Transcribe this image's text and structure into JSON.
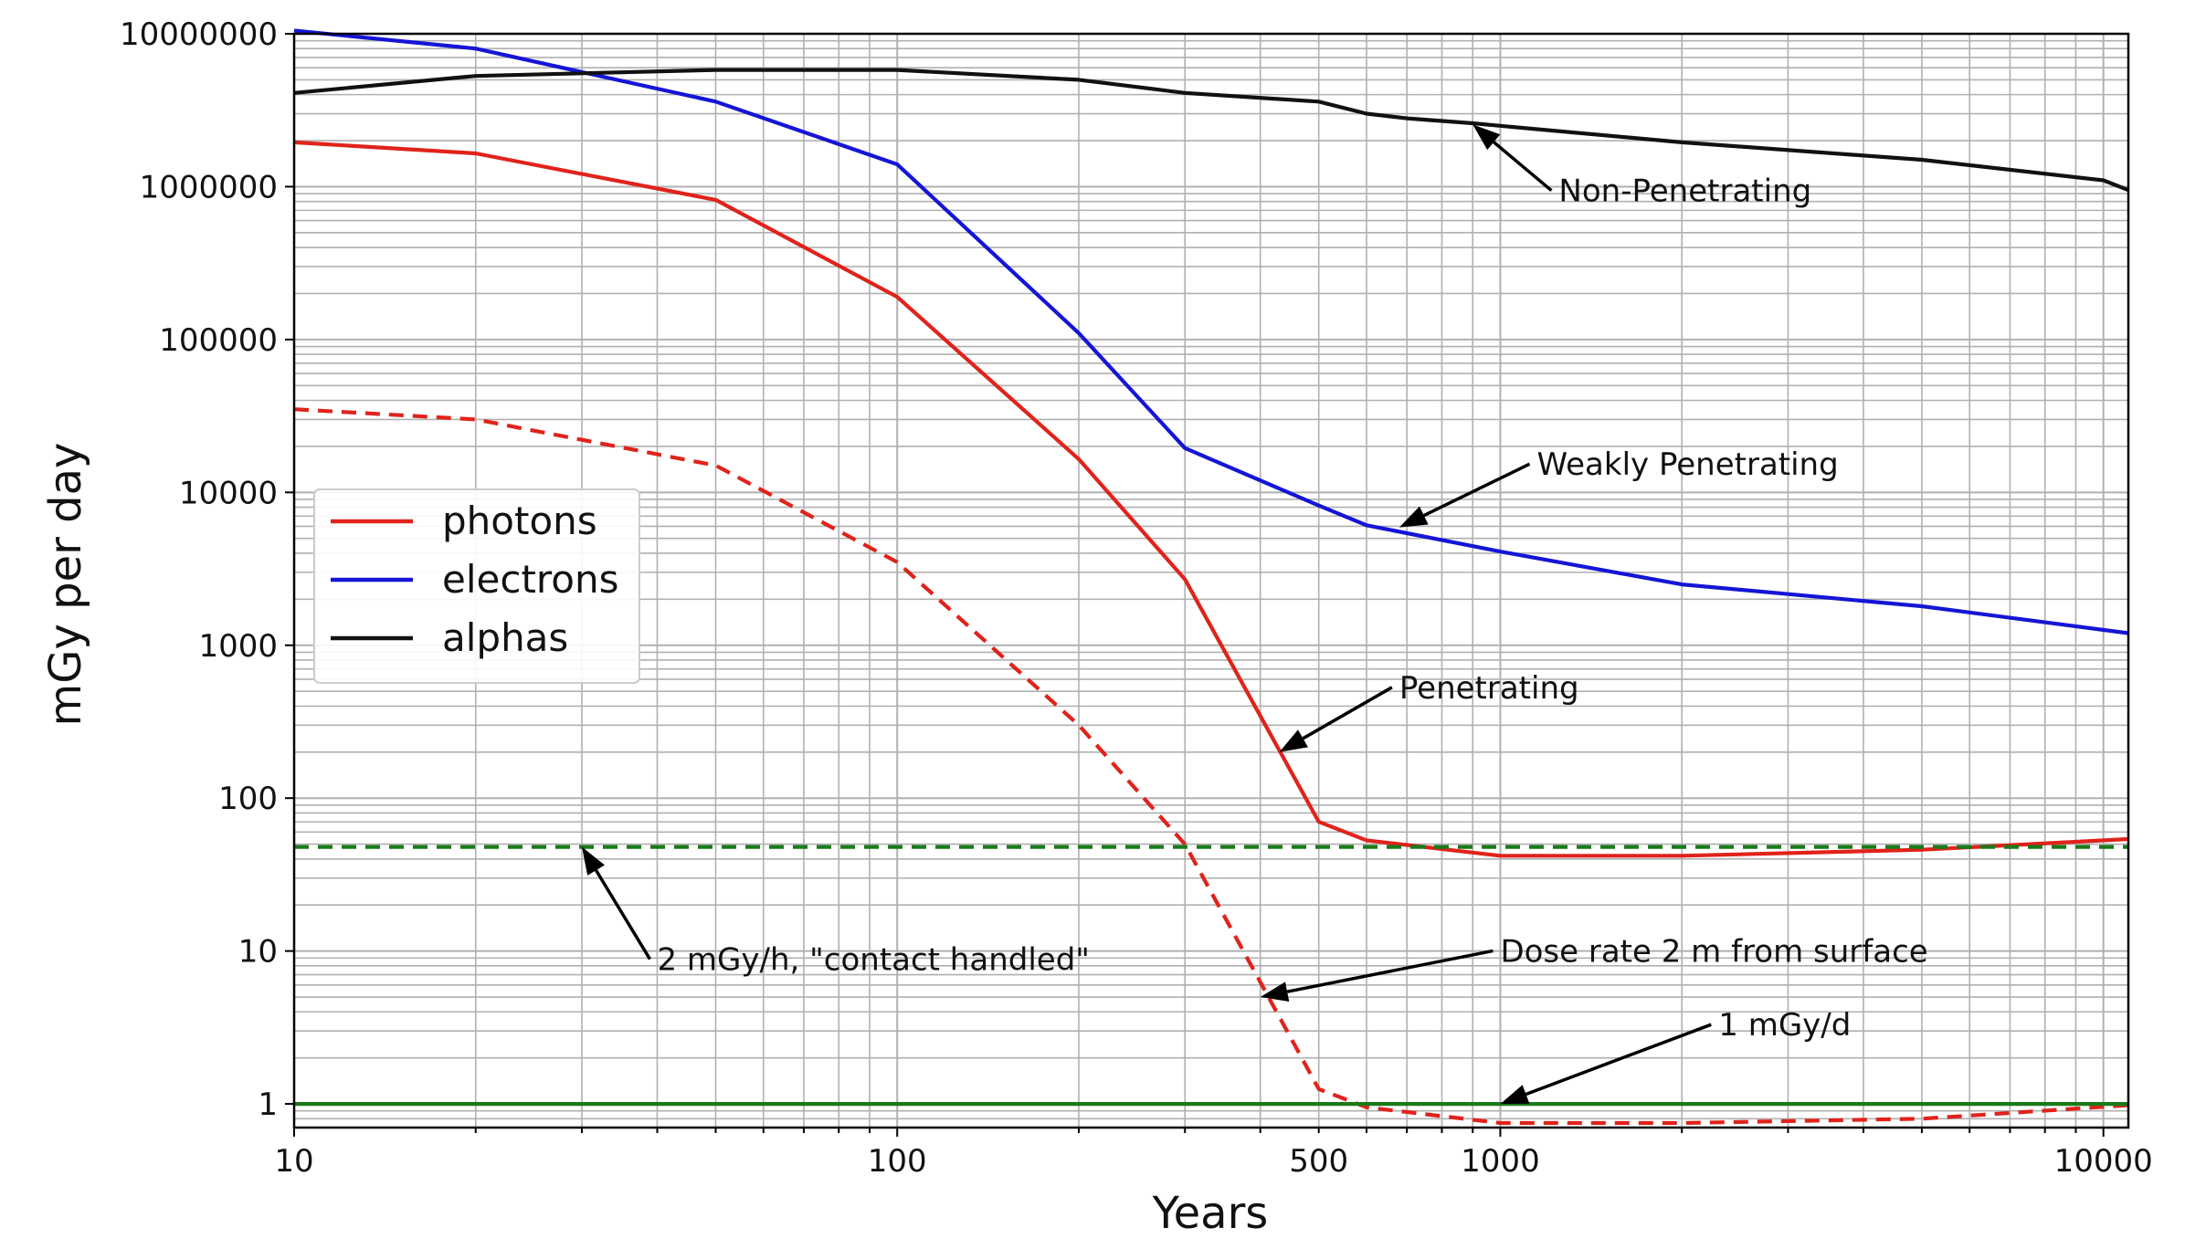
{
  "chart_data": {
    "type": "line",
    "xlabel": "Years",
    "ylabel": "mGy per day",
    "xscale": "log",
    "yscale": "log",
    "xlim": [
      10,
      11000
    ],
    "ylim": [
      0.7,
      10000000
    ],
    "grid": true,
    "legend_position": "center-left",
    "x_ticks": [
      {
        "value": 10,
        "label": "10"
      },
      {
        "value": 100,
        "label": "100"
      },
      {
        "value": 500,
        "label": "500"
      },
      {
        "value": 1000,
        "label": "1000"
      },
      {
        "value": 10000,
        "label": "10000"
      }
    ],
    "y_ticks": [
      {
        "value": 1,
        "label": "1"
      },
      {
        "value": 10,
        "label": "10"
      },
      {
        "value": 100,
        "label": "100"
      },
      {
        "value": 1000,
        "label": "1000"
      },
      {
        "value": 10000,
        "label": "10000"
      },
      {
        "value": 100000,
        "label": "100000"
      },
      {
        "value": 1000000,
        "label": "1000000"
      },
      {
        "value": 10000000,
        "label": "10000000"
      }
    ],
    "series": [
      {
        "name": "photons",
        "color": "#e0231b",
        "style": "solid",
        "in_legend": true,
        "x": [
          10,
          20,
          50,
          100,
          200,
          300,
          500,
          600,
          1000,
          2000,
          5000,
          11000
        ],
        "y": [
          1950000,
          1650000,
          820000,
          190000,
          16500,
          2700,
          70,
          53,
          42,
          42,
          46,
          54
        ]
      },
      {
        "name": "electrons",
        "color": "#1515d6",
        "style": "solid",
        "in_legend": true,
        "x": [
          10,
          20,
          50,
          100,
          200,
          300,
          500,
          600,
          1000,
          2000,
          5000,
          11000
        ],
        "y": [
          10500000,
          8000000,
          3600000,
          1400000,
          110000,
          19500,
          8200,
          6100,
          4100,
          2500,
          1800,
          1200
        ]
      },
      {
        "name": "alphas",
        "color": "#111111",
        "style": "solid",
        "in_legend": true,
        "x": [
          10,
          20,
          50,
          100,
          200,
          300,
          500,
          600,
          700,
          900,
          1000,
          2000,
          5000,
          10000,
          11000
        ],
        "y": [
          4100000,
          5300000,
          5800000,
          5800000,
          5000000,
          4100000,
          3600000,
          3000000,
          2800000,
          2600000,
          2500000,
          1950000,
          1500000,
          1100000,
          950000
        ]
      },
      {
        "name": "",
        "color": "#e0231b",
        "style": "dashed",
        "in_legend": false,
        "x": [
          10,
          20,
          50,
          100,
          200,
          300,
          500,
          600,
          1000,
          2000,
          5000,
          11000
        ],
        "y": [
          35000,
          30000,
          15000,
          3500,
          300,
          50,
          1.25,
          0.95,
          0.75,
          0.75,
          0.8,
          0.98
        ]
      },
      {
        "name": "",
        "color": "#1a7a1a",
        "style": "dashed",
        "in_legend": false,
        "x": [
          10,
          11000
        ],
        "y": [
          48,
          48
        ]
      },
      {
        "name": "",
        "color": "#1a7a1a",
        "style": "solid",
        "in_legend": false,
        "x": [
          10,
          11000
        ],
        "y": [
          1,
          1
        ]
      }
    ],
    "annotations": [
      {
        "text": "Non-Penetrating",
        "text_x": 1250,
        "text_y": 800000,
        "arrow_x": 900,
        "arrow_y": 2550000
      },
      {
        "text": "Weakly Penetrating",
        "text_x": 1150,
        "text_y": 13000,
        "arrow_x": 680,
        "arrow_y": 5900
      },
      {
        "text": "Penetrating",
        "text_x": 680,
        "text_y": 450,
        "arrow_x": 430,
        "arrow_y": 200
      },
      {
        "text": "2 mGy/h, \"contact handled\"",
        "text_x": 40,
        "text_y": 7.5,
        "arrow_x": 30,
        "arrow_y": 48
      },
      {
        "text": "Dose rate 2 m from surface",
        "text_x": 1000,
        "text_y": 8.5,
        "arrow_x": 400,
        "arrow_y": 5
      },
      {
        "text": "1 mGy/d",
        "text_x": 2300,
        "text_y": 2.8,
        "arrow_x": 1000,
        "arrow_y": 1
      }
    ]
  }
}
